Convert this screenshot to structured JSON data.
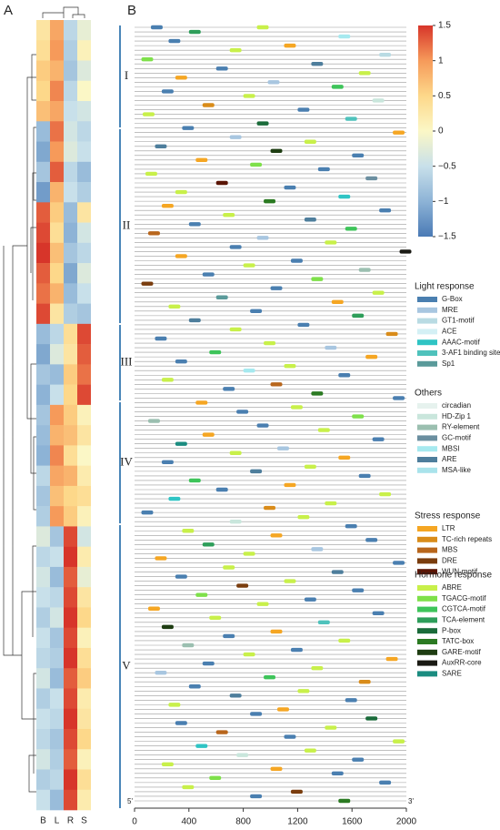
{
  "chart_data": {
    "type": "heatmap_promoter",
    "panels": [
      "A",
      "B"
    ],
    "heatmap": {
      "columns": [
        "B",
        "L",
        "R",
        "S"
      ],
      "colorbar": {
        "stops": [
          [
            -1.5,
            "#4a7ab5"
          ],
          [
            -1,
            "#8db3d6"
          ],
          [
            -0.5,
            "#c8e0ea"
          ],
          [
            0,
            "#fbf7c6"
          ],
          [
            0.5,
            "#fdd88a"
          ],
          [
            1,
            "#f69a5a"
          ],
          [
            1.5,
            "#d7352a"
          ]
        ],
        "lim": [
          -1.5,
          1.5
        ],
        "ticks": [
          1.5,
          1,
          0.5,
          0,
          {
            "value": -0.5,
            "label": "−0.5"
          },
          {
            "value": -1,
            "label": "−1"
          },
          {
            "value": -1.5,
            "label": "−1.5"
          }
        ]
      },
      "values": [
        [
          0.3,
          0.9,
          -0.6,
          -0.2
        ],
        [
          0.4,
          1.0,
          -0.7,
          0.1
        ],
        [
          0.6,
          0.8,
          -0.8,
          -0.3
        ],
        [
          0.5,
          1.1,
          -0.6,
          0.0
        ],
        [
          0.7,
          0.9,
          -0.5,
          -0.4
        ],
        [
          -0.9,
          1.2,
          -0.4,
          -0.6
        ],
        [
          -1.1,
          1.0,
          -0.3,
          -0.5
        ],
        [
          -0.8,
          1.3,
          -0.6,
          -0.9
        ],
        [
          -1.2,
          0.8,
          -0.5,
          -0.7
        ],
        [
          1.3,
          0.6,
          -0.9,
          0.3
        ],
        [
          1.4,
          0.4,
          -1.0,
          -0.4
        ],
        [
          1.5,
          0.7,
          -0.8,
          -0.6
        ],
        [
          1.3,
          0.5,
          -1.1,
          -0.3
        ],
        [
          1.2,
          0.8,
          -0.9,
          -0.5
        ],
        [
          1.4,
          0.3,
          -0.7,
          -0.8
        ],
        [
          -0.9,
          -0.6,
          0.4,
          1.4
        ],
        [
          -1.1,
          -0.3,
          0.3,
          1.3
        ],
        [
          -0.8,
          -0.9,
          0.6,
          1.2
        ],
        [
          -1.0,
          -0.5,
          0.5,
          1.4
        ],
        [
          -0.8,
          1.0,
          0.6,
          0.1
        ],
        [
          -0.9,
          0.8,
          0.7,
          0.3
        ],
        [
          -1.0,
          1.1,
          0.4,
          0.0
        ],
        [
          -0.6,
          0.9,
          0.8,
          0.2
        ],
        [
          -0.8,
          0.7,
          0.5,
          0.4
        ],
        [
          -0.7,
          1.0,
          0.6,
          0.1
        ],
        [
          -0.3,
          -0.8,
          1.4,
          -0.4
        ],
        [
          -0.6,
          -0.5,
          1.5,
          0.2
        ],
        [
          -0.4,
          -0.9,
          1.3,
          -0.2
        ],
        [
          -0.5,
          -0.6,
          1.4,
          0.3
        ],
        [
          -0.7,
          -0.4,
          1.5,
          0.5
        ],
        [
          -0.5,
          -0.8,
          1.4,
          0.1
        ],
        [
          -0.6,
          -0.7,
          1.5,
          0.4
        ],
        [
          -0.4,
          -0.9,
          1.3,
          0.6
        ],
        [
          -0.7,
          -0.5,
          1.4,
          0.2
        ],
        [
          -0.5,
          -0.6,
          1.5,
          0.3
        ],
        [
          -0.6,
          -0.8,
          1.4,
          0.5
        ],
        [
          -0.4,
          -0.7,
          1.3,
          0.1
        ],
        [
          -0.7,
          -0.6,
          1.5,
          0.4
        ],
        [
          -0.5,
          -0.9,
          1.4,
          0.2
        ]
      ]
    },
    "groups": [
      "I",
      "II",
      "III",
      "IV",
      "V"
    ],
    "xlim": [
      0,
      2000
    ],
    "xticks": [
      0,
      400,
      800,
      1200,
      1600,
      2000
    ],
    "end_labels": [
      "5'",
      "3'"
    ],
    "legend_groups": [
      {
        "title": "Light response",
        "items": [
          {
            "name": "G-Box",
            "color": "#4a7fb0"
          },
          {
            "name": "MRE",
            "color": "#a8c6e0"
          },
          {
            "name": "GT1-motif",
            "color": "#b9dbe3"
          },
          {
            "name": "ACE",
            "color": "#d4f0f5"
          },
          {
            "name": "AAAC-motif",
            "color": "#2fc4c4"
          },
          {
            "name": "3-AF1 binding site",
            "color": "#4fc2bc"
          },
          {
            "name": "Sp1",
            "color": "#5a9a9a"
          }
        ]
      },
      {
        "title": "Others",
        "items": [
          {
            "name": "circadian",
            "color": "#e6f2ee"
          },
          {
            "name": "HD-Zip 1",
            "color": "#c9e6dc"
          },
          {
            "name": "RY-element",
            "color": "#9bbfb0"
          },
          {
            "name": "GC-motif",
            "color": "#6b8fa0"
          },
          {
            "name": "MBSI",
            "color": "#a6e9ef"
          },
          {
            "name": "ARE",
            "color": "#4e7e9c"
          },
          {
            "name": "MSA-like",
            "color": "#a9e3eb"
          }
        ]
      },
      {
        "title": "Stress response",
        "items": [
          {
            "name": "LTR",
            "color": "#f5a623"
          },
          {
            "name": "TC-rich repeats",
            "color": "#d98c1a"
          },
          {
            "name": "MBS",
            "color": "#b8661c"
          },
          {
            "name": "DRE",
            "color": "#7a3d0e"
          },
          {
            "name": "WUN-motif",
            "color": "#5a1505"
          }
        ]
      },
      {
        "title": "Hormone response",
        "items": [
          {
            "name": "ABRE",
            "color": "#c8f04a"
          },
          {
            "name": "TGACG-motif",
            "color": "#7ee04a"
          },
          {
            "name": "CGTCA-motif",
            "color": "#3ec45a"
          },
          {
            "name": "TCA-element",
            "color": "#2e9e5a"
          },
          {
            "name": "P-box",
            "color": "#1a6b3a"
          },
          {
            "name": "TATC-box",
            "color": "#2b7a22"
          },
          {
            "name": "GARE-motif",
            "color": "#1e3d12"
          },
          {
            "name": "AuxRR-core",
            "color": "#1a1a14"
          },
          {
            "name": "SARE",
            "color": "#1b8c80"
          }
        ]
      }
    ],
    "motifs": [
      [
        0,
        120,
        0,
        0
      ],
      [
        0,
        900,
        3,
        0
      ],
      [
        1,
        400,
        3,
        3
      ],
      [
        2,
        1500,
        1,
        4
      ],
      [
        3,
        250,
        0,
        0
      ],
      [
        4,
        1100,
        2,
        0
      ],
      [
        5,
        700,
        3,
        0
      ],
      [
        6,
        1800,
        0,
        2
      ],
      [
        7,
        50,
        3,
        1
      ],
      [
        8,
        1300,
        1,
        5
      ],
      [
        9,
        600,
        0,
        0
      ],
      [
        10,
        1650,
        3,
        0
      ],
      [
        11,
        300,
        2,
        0
      ],
      [
        12,
        980,
        0,
        1
      ],
      [
        13,
        1450,
        3,
        2
      ],
      [
        14,
        200,
        0,
        0
      ],
      [
        15,
        800,
        3,
        0
      ],
      [
        16,
        1750,
        1,
        1
      ],
      [
        17,
        500,
        2,
        1
      ],
      [
        18,
        1200,
        0,
        0
      ],
      [
        19,
        60,
        3,
        0
      ],
      [
        20,
        1550,
        0,
        5
      ],
      [
        21,
        900,
        3,
        4
      ],
      [
        22,
        350,
        0,
        0
      ],
      [
        23,
        1900,
        2,
        0
      ],
      [
        24,
        700,
        0,
        1
      ],
      [
        25,
        1250,
        3,
        0
      ],
      [
        26,
        150,
        1,
        5
      ],
      [
        27,
        1000,
        3,
        6
      ],
      [
        28,
        1600,
        0,
        0
      ],
      [
        29,
        450,
        2,
        0
      ],
      [
        30,
        850,
        3,
        1
      ],
      [
        31,
        1350,
        0,
        0
      ],
      [
        32,
        80,
        3,
        0
      ],
      [
        33,
        1700,
        1,
        3
      ],
      [
        34,
        600,
        2,
        4
      ],
      [
        35,
        1100,
        0,
        0
      ],
      [
        36,
        300,
        3,
        0
      ],
      [
        37,
        1500,
        0,
        4
      ],
      [
        38,
        950,
        3,
        5
      ],
      [
        39,
        200,
        2,
        0
      ],
      [
        40,
        1800,
        0,
        0
      ],
      [
        41,
        650,
        3,
        0
      ],
      [
        42,
        1250,
        1,
        5
      ],
      [
        43,
        400,
        0,
        0
      ],
      [
        44,
        1550,
        3,
        2
      ],
      [
        45,
        100,
        2,
        2
      ],
      [
        46,
        900,
        0,
        1
      ],
      [
        47,
        1400,
        3,
        0
      ],
      [
        48,
        700,
        0,
        0
      ],
      [
        49,
        1950,
        3,
        7
      ],
      [
        50,
        300,
        2,
        0
      ],
      [
        51,
        1150,
        0,
        0
      ],
      [
        52,
        800,
        3,
        0
      ],
      [
        53,
        1650,
        1,
        2
      ],
      [
        54,
        500,
        0,
        0
      ],
      [
        55,
        1300,
        3,
        1
      ],
      [
        56,
        50,
        2,
        3
      ],
      [
        57,
        1000,
        0,
        0
      ],
      [
        58,
        1750,
        3,
        0
      ],
      [
        59,
        600,
        0,
        6
      ],
      [
        60,
        1450,
        2,
        0
      ],
      [
        61,
        250,
        3,
        0
      ],
      [
        62,
        850,
        0,
        0
      ],
      [
        63,
        1600,
        3,
        3
      ],
      [
        64,
        400,
        1,
        5
      ],
      [
        65,
        1200,
        0,
        0
      ],
      [
        66,
        700,
        3,
        0
      ],
      [
        67,
        1850,
        2,
        1
      ],
      [
        68,
        150,
        0,
        0
      ],
      [
        69,
        950,
        3,
        0
      ],
      [
        70,
        1400,
        0,
        1
      ],
      [
        71,
        550,
        3,
        2
      ],
      [
        72,
        1700,
        2,
        0
      ],
      [
        73,
        300,
        0,
        0
      ],
      [
        74,
        1100,
        3,
        0
      ],
      [
        75,
        800,
        1,
        4
      ],
      [
        76,
        1500,
        0,
        0
      ],
      [
        77,
        200,
        3,
        0
      ],
      [
        78,
        1000,
        2,
        2
      ],
      [
        79,
        650,
        0,
        0
      ],
      [
        80,
        1300,
        3,
        5
      ],
      [
        81,
        1900,
        0,
        0
      ],
      [
        82,
        450,
        2,
        0
      ],
      [
        83,
        1150,
        3,
        0
      ],
      [
        84,
        750,
        0,
        0
      ],
      [
        85,
        1600,
        3,
        1
      ],
      [
        86,
        100,
        1,
        2
      ],
      [
        87,
        900,
        0,
        0
      ],
      [
        88,
        1350,
        3,
        0
      ],
      [
        89,
        500,
        2,
        0
      ],
      [
        90,
        1750,
        0,
        0
      ],
      [
        91,
        300,
        3,
        8
      ],
      [
        92,
        1050,
        0,
        1
      ],
      [
        93,
        700,
        3,
        0
      ],
      [
        94,
        1500,
        2,
        0
      ],
      [
        95,
        200,
        0,
        0
      ],
      [
        96,
        1250,
        3,
        0
      ],
      [
        97,
        850,
        1,
        5
      ],
      [
        98,
        1650,
        0,
        0
      ],
      [
        99,
        400,
        3,
        2
      ],
      [
        100,
        1100,
        2,
        0
      ],
      [
        101,
        600,
        0,
        0
      ],
      [
        102,
        1800,
        3,
        0
      ],
      [
        103,
        250,
        0,
        4
      ],
      [
        104,
        1400,
        3,
        0
      ],
      [
        105,
        950,
        2,
        1
      ],
      [
        106,
        50,
        0,
        0
      ],
      [
        107,
        1200,
        3,
        0
      ],
      [
        108,
        700,
        1,
        1
      ],
      [
        109,
        1550,
        0,
        0
      ],
      [
        110,
        350,
        3,
        0
      ],
      [
        111,
        1000,
        2,
        0
      ],
      [
        112,
        1700,
        0,
        0
      ],
      [
        113,
        500,
        3,
        3
      ],
      [
        114,
        1300,
        0,
        1
      ],
      [
        115,
        800,
        3,
        0
      ],
      [
        116,
        150,
        2,
        0
      ],
      [
        117,
        1900,
        0,
        0
      ],
      [
        118,
        650,
        3,
        0
      ],
      [
        119,
        1450,
        1,
        5
      ],
      [
        120,
        300,
        0,
        0
      ],
      [
        121,
        1100,
        3,
        0
      ],
      [
        122,
        750,
        2,
        3
      ],
      [
        123,
        1600,
        0,
        0
      ],
      [
        124,
        450,
        3,
        1
      ],
      [
        125,
        1250,
        0,
        0
      ],
      [
        126,
        900,
        3,
        0
      ],
      [
        127,
        100,
        2,
        0
      ],
      [
        128,
        1750,
        0,
        0
      ],
      [
        129,
        550,
        3,
        0
      ],
      [
        130,
        1350,
        0,
        5
      ],
      [
        131,
        200,
        3,
        6
      ],
      [
        132,
        1000,
        2,
        0
      ],
      [
        133,
        650,
        0,
        0
      ],
      [
        134,
        1500,
        3,
        0
      ],
      [
        135,
        350,
        1,
        2
      ],
      [
        136,
        1150,
        0,
        0
      ],
      [
        137,
        800,
        3,
        0
      ],
      [
        138,
        1850,
        2,
        0
      ],
      [
        139,
        500,
        0,
        0
      ],
      [
        140,
        1300,
        3,
        0
      ],
      [
        141,
        150,
        0,
        1
      ],
      [
        142,
        950,
        3,
        2
      ],
      [
        143,
        1650,
        2,
        1
      ],
      [
        144,
        400,
        0,
        0
      ],
      [
        145,
        1200,
        3,
        0
      ],
      [
        146,
        700,
        1,
        5
      ],
      [
        147,
        1550,
        0,
        0
      ],
      [
        148,
        250,
        3,
        0
      ],
      [
        149,
        1050,
        2,
        0
      ],
      [
        150,
        850,
        0,
        0
      ],
      [
        151,
        1700,
        3,
        4
      ],
      [
        152,
        300,
        0,
        0
      ],
      [
        153,
        1400,
        3,
        0
      ],
      [
        154,
        600,
        2,
        2
      ],
      [
        155,
        1100,
        0,
        0
      ],
      [
        156,
        1900,
        3,
        0
      ],
      [
        157,
        450,
        0,
        4
      ],
      [
        158,
        1250,
        3,
        0
      ],
      [
        159,
        750,
        1,
        1
      ],
      [
        160,
        1600,
        0,
        0
      ],
      [
        161,
        200,
        3,
        0
      ],
      [
        162,
        1000,
        2,
        0
      ],
      [
        163,
        1450,
        0,
        0
      ],
      [
        164,
        550,
        3,
        1
      ],
      [
        165,
        1800,
        0,
        0
      ],
      [
        166,
        350,
        3,
        0
      ],
      [
        167,
        1150,
        2,
        3
      ],
      [
        168,
        850,
        0,
        0
      ],
      [
        169,
        1500,
        3,
        5
      ]
    ]
  }
}
